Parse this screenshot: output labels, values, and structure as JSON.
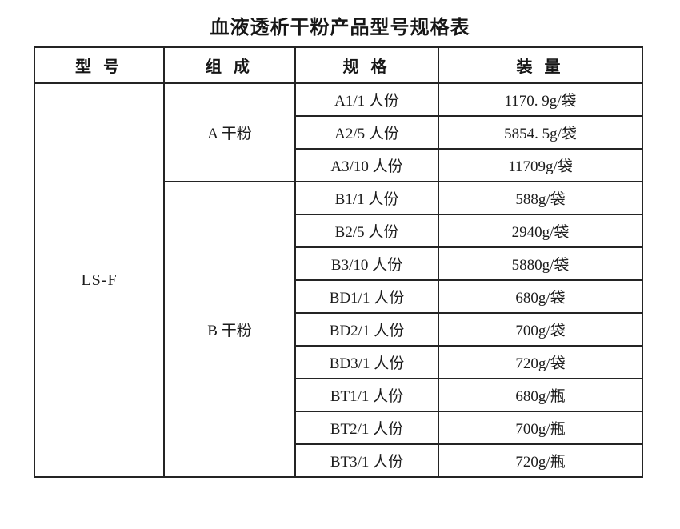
{
  "title": "血液透析干粉产品型号规格表",
  "colors": {
    "text": "#1c1c1c",
    "border": "#242424",
    "background": "#ffffff"
  },
  "table": {
    "headers": {
      "model": "型 号",
      "composition": "组 成",
      "spec": "规 格",
      "quantity": "装 量"
    },
    "model": "LS-F",
    "compositions": {
      "a": "A 干粉",
      "b": "B 干粉"
    },
    "rows": [
      {
        "spec": "A1/1 人份",
        "qty": "1170. 9g/袋"
      },
      {
        "spec": "A2/5 人份",
        "qty": "5854. 5g/袋"
      },
      {
        "spec": "A3/10 人份",
        "qty": "11709g/袋"
      },
      {
        "spec": "B1/1 人份",
        "qty": "588g/袋"
      },
      {
        "spec": "B2/5 人份",
        "qty": "2940g/袋"
      },
      {
        "spec": "B3/10 人份",
        "qty": "5880g/袋"
      },
      {
        "spec": "BD1/1 人份",
        "qty": "680g/袋"
      },
      {
        "spec": "BD2/1 人份",
        "qty": "700g/袋"
      },
      {
        "spec": "BD3/1 人份",
        "qty": "720g/袋"
      },
      {
        "spec": "BT1/1 人份",
        "qty": "680g/瓶"
      },
      {
        "spec": "BT2/1 人份",
        "qty": "700g/瓶"
      },
      {
        "spec": "BT3/1 人份",
        "qty": "720g/瓶"
      }
    ]
  }
}
